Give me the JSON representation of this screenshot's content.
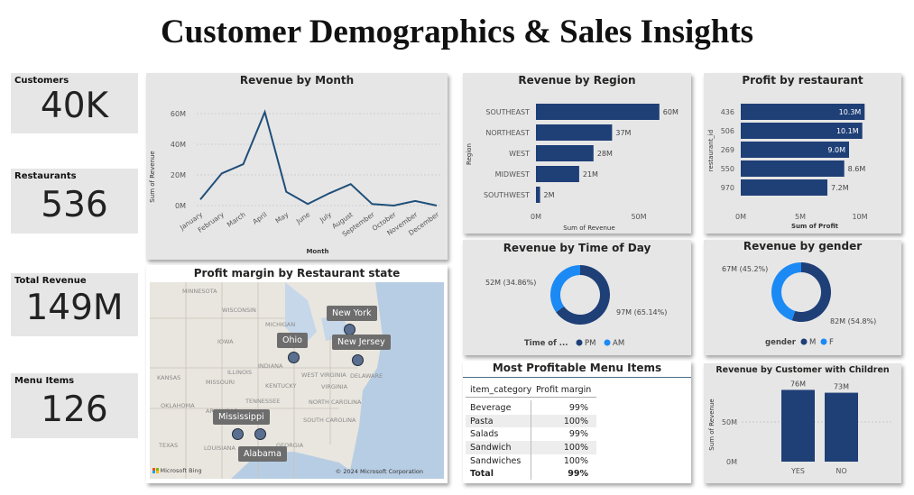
{
  "dashboard": {
    "title": "Customer Demographics & Sales Insights"
  },
  "kpis": [
    {
      "label": "Customers",
      "value": "40K"
    },
    {
      "label": "Restaurants",
      "value": "536"
    },
    {
      "label": "Total Revenue",
      "value": "149M"
    },
    {
      "label": "Menu Items",
      "value": "126"
    }
  ],
  "revenue_by_month": {
    "title": "Revenue by Month",
    "ylabel": "Sum of Revenue",
    "xlabel": "Month",
    "yticks": [
      "60M",
      "40M",
      "20M",
      "0M"
    ],
    "colors": {
      "line": "#1f4e79"
    }
  },
  "revenue_by_region": {
    "title": "Revenue by Region",
    "ylabel": "Region",
    "xlabel": "Sum of Revenue",
    "xticks": [
      "0M",
      "50M"
    ],
    "value_labels": [
      "60M",
      "37M",
      "28M",
      "21M",
      "2M"
    ]
  },
  "profit_by_restaurant": {
    "title": "Profit by restaurant",
    "ylabel": "restaurant_id",
    "xlabel": "Sum of Profit",
    "xticks": [
      "0M",
      "5M",
      "10M"
    ],
    "value_labels": [
      "10.3M",
      "10.1M",
      "9.0M",
      "8.6M",
      "7.2M"
    ]
  },
  "revenue_by_time": {
    "title": "Revenue by Time of Day",
    "legend_title": "Time of ...",
    "labels": [
      "52M (34.86%)",
      "97M (65.14%)"
    ],
    "legend": [
      "PM",
      "AM"
    ]
  },
  "revenue_by_gender": {
    "title": "Revenue by gender",
    "legend_title": "gender",
    "labels": [
      "67M (45.2%)",
      "82M (54.8%)"
    ],
    "legend": [
      "M",
      "F"
    ]
  },
  "map": {
    "title": "Profit margin by Restaurant state",
    "pills": [
      "New York",
      "Ohio",
      "New Jersey",
      "Mississippi",
      "Alabama"
    ],
    "bg_labels": [
      "MINNESOTA",
      "WISCONSIN",
      "MICHIGAN",
      "IOWA",
      "ILLINOIS",
      "INDIANA",
      "KANSAS",
      "MISSOURI",
      "KENTUCKY",
      "WEST VIRGINIA",
      "VIRGINIA",
      "OKLAHOMA",
      "TENNESSEE",
      "NORTH CAROLINA",
      "SOUTH CAROLINA",
      "ARKANSAS",
      "TEXAS",
      "LOUISIANA",
      "GEORGIA",
      "DELAWARE"
    ],
    "brand": "Microsoft Bing",
    "copyright": "© 2024 Microsoft Corporation"
  },
  "menu_table": {
    "title": "Most Profitable Menu Items",
    "headers": [
      "item_category",
      "Profit margin"
    ],
    "rows": [
      {
        "category": "Beverage",
        "margin": "99%"
      },
      {
        "category": "Pasta",
        "margin": "100%"
      },
      {
        "category": "Salads",
        "margin": "99%"
      },
      {
        "category": "Sandwich",
        "margin": "100%"
      },
      {
        "category": "Sandwiches",
        "margin": "100%"
      }
    ],
    "total": {
      "category": "Total",
      "margin": "99%"
    }
  },
  "revenue_children": {
    "title": "Revenue by Customer with Children",
    "ylabel": "Sum of Revenue",
    "yticks": [
      "50M",
      "0M"
    ],
    "value_labels": [
      "76M",
      "73M"
    ]
  },
  "chart_data": [
    {
      "type": "line",
      "title": "Revenue by Month",
      "xlabel": "Month",
      "ylabel": "Sum of Revenue",
      "x": [
        "January",
        "February",
        "March",
        "April",
        "May",
        "June",
        "July",
        "August",
        "September",
        "October",
        "November",
        "December"
      ],
      "values": [
        4,
        21,
        27,
        61,
        9,
        1,
        8,
        14,
        1,
        0,
        3,
        0
      ],
      "ylim": [
        0,
        65
      ],
      "grid": true
    },
    {
      "type": "bar",
      "orientation": "horizontal",
      "title": "Revenue by Region",
      "xlabel": "Sum of Revenue",
      "ylabel": "Region",
      "categories": [
        "SOUTHEAST",
        "NORTHEAST",
        "WEST",
        "MIDWEST",
        "SOUTHWEST"
      ],
      "values": [
        60,
        37,
        28,
        21,
        2
      ],
      "xlim": [
        0,
        75
      ]
    },
    {
      "type": "bar",
      "orientation": "horizontal",
      "title": "Profit by restaurant",
      "xlabel": "Sum of Profit",
      "ylabel": "restaurant_id",
      "categories": [
        "436",
        "506",
        "269",
        "550",
        "970"
      ],
      "values": [
        10.3,
        10.1,
        9.0,
        8.6,
        7.2
      ],
      "xlim": [
        0,
        10.5
      ]
    },
    {
      "type": "pie",
      "title": "Revenue by Time of Day",
      "categories": [
        "PM",
        "AM"
      ],
      "values": [
        97,
        52
      ],
      "colors": [
        "#1f3f77",
        "#1b8af5"
      ]
    },
    {
      "type": "pie",
      "title": "Revenue by gender",
      "categories": [
        "M",
        "F"
      ],
      "values": [
        82,
        67
      ],
      "colors": [
        "#1f3f77",
        "#1b8af5"
      ]
    },
    {
      "type": "bar",
      "title": "Revenue by Customer with Children",
      "ylabel": "Sum of Revenue",
      "categories": [
        "YES",
        "NO"
      ],
      "values": [
        76,
        73
      ],
      "ylim": [
        0,
        85
      ]
    }
  ]
}
